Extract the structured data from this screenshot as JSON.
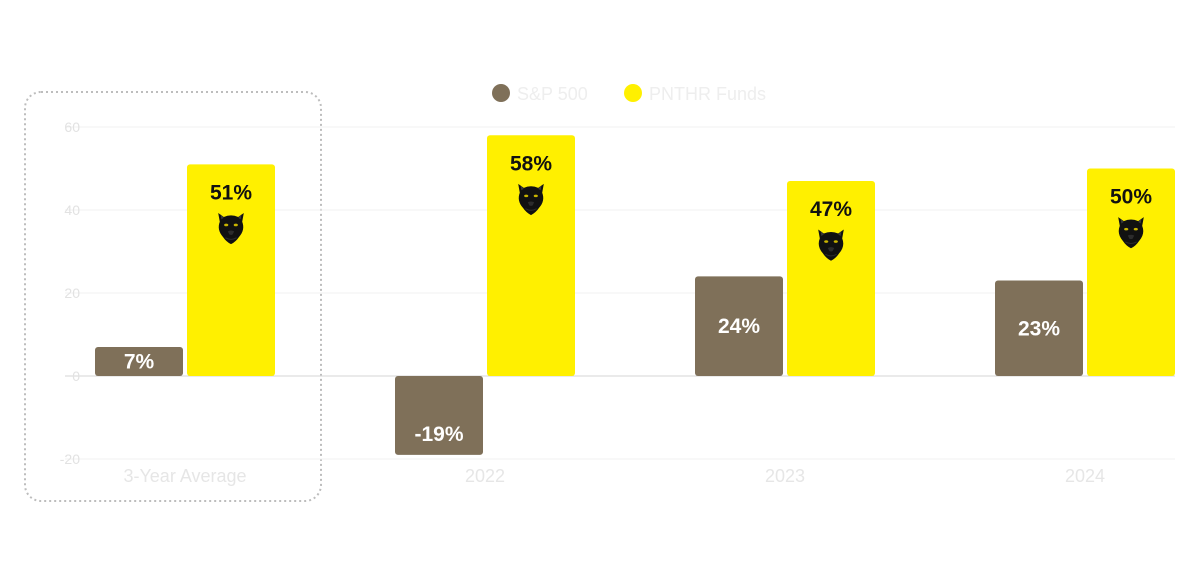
{
  "chart_data": {
    "type": "bar",
    "categories": [
      "3-Year Average",
      "2022",
      "2023",
      "2024"
    ],
    "series": [
      {
        "name": "S&P 500",
        "color": "#7f7059",
        "values": [
          7,
          -19,
          24,
          23
        ],
        "labels": [
          "7%",
          "-19%",
          "24%",
          "23%"
        ]
      },
      {
        "name": "PNTHR Funds",
        "color": "#fff000",
        "values": [
          51,
          58,
          47,
          50
        ],
        "labels": [
          "51%",
          "58%",
          "47%",
          "50%"
        ],
        "icon": "panther-icon"
      }
    ],
    "yticks": [
      "-20",
      "0",
      "20",
      "40",
      "60"
    ],
    "ylim": [
      -20,
      60
    ],
    "grid": true,
    "legend": "top-center",
    "highlight_category": "3-Year Average",
    "xlabel": "",
    "ylabel": ""
  }
}
